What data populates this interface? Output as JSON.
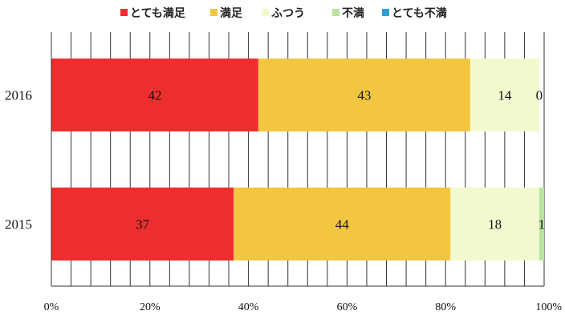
{
  "chart_data": {
    "type": "bar",
    "orientation": "horizontal",
    "stacked": true,
    "categories": [
      "2016",
      "2015"
    ],
    "series": [
      {
        "name": "とても満足",
        "color": "#ee2e2e",
        "values": [
          42,
          37
        ]
      },
      {
        "name": "満足",
        "color": "#f2c641",
        "values": [
          43,
          44
        ]
      },
      {
        "name": "ふつう",
        "color": "#f3f9cf",
        "values": [
          14,
          18
        ]
      },
      {
        "name": "不満",
        "color": "#b9e4a0",
        "values": [
          0,
          1
        ]
      },
      {
        "name": "とても不満",
        "color": "#2e9fd8",
        "values": [
          0,
          0
        ]
      }
    ],
    "data_labels": [
      [
        "42",
        "43",
        "14",
        "0",
        ""
      ],
      [
        "37",
        "44",
        "18",
        "1",
        ""
      ]
    ],
    "xlim": [
      0,
      100
    ],
    "xticks": [
      0,
      20,
      40,
      60,
      80,
      100
    ],
    "xtick_labels": [
      "0%",
      "20%",
      "40%",
      "60%",
      "80%",
      "100%"
    ],
    "grid": "vertical",
    "legend_position": "top"
  }
}
